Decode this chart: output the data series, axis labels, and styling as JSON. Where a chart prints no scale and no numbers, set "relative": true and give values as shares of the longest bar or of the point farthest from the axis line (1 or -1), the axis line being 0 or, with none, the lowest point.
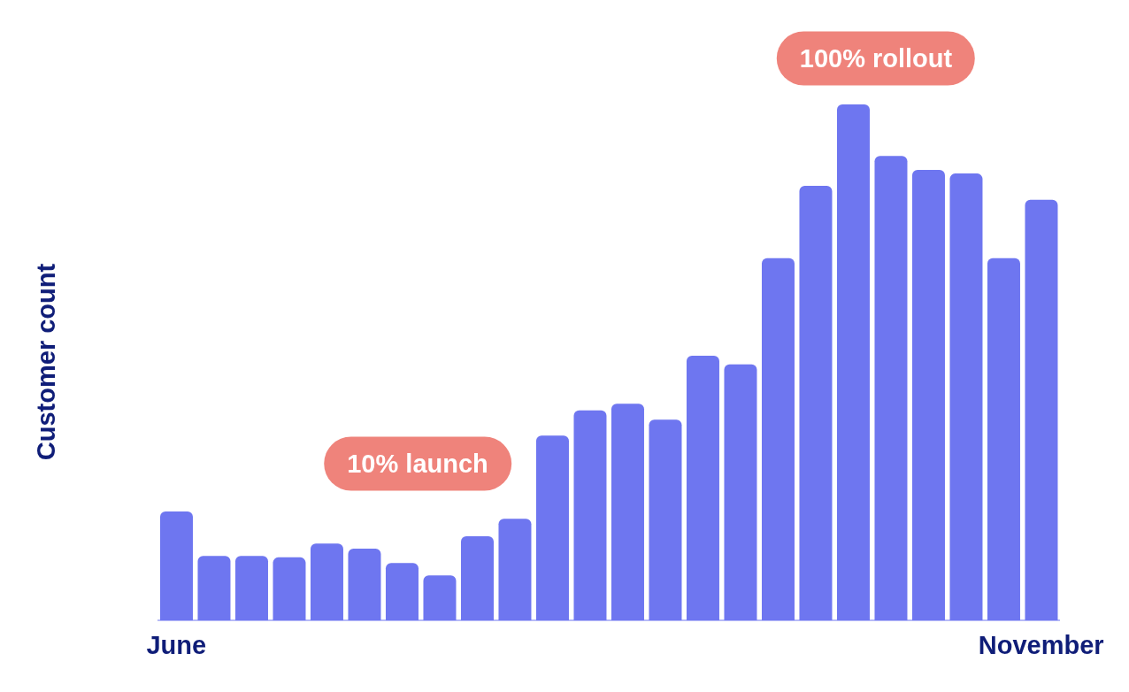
{
  "chart_data": {
    "type": "bar",
    "relative": true,
    "ylabel": "Customer count",
    "categories": [
      "June",
      null,
      null,
      null,
      null,
      null,
      null,
      null,
      null,
      null,
      null,
      null,
      null,
      null,
      null,
      null,
      null,
      null,
      null,
      null,
      null,
      null,
      null,
      "November"
    ],
    "values": [
      0.211,
      0.125,
      0.125,
      0.122,
      0.149,
      0.139,
      0.111,
      0.087,
      0.163,
      0.197,
      0.358,
      0.407,
      0.42,
      0.389,
      0.513,
      0.496,
      0.702,
      0.842,
      1,
      0.9,
      0.873,
      0.866,
      0.702,
      0.815
    ],
    "color": "#6e76f0",
    "annotations": [
      "10% launch",
      "100% rollout"
    ]
  }
}
